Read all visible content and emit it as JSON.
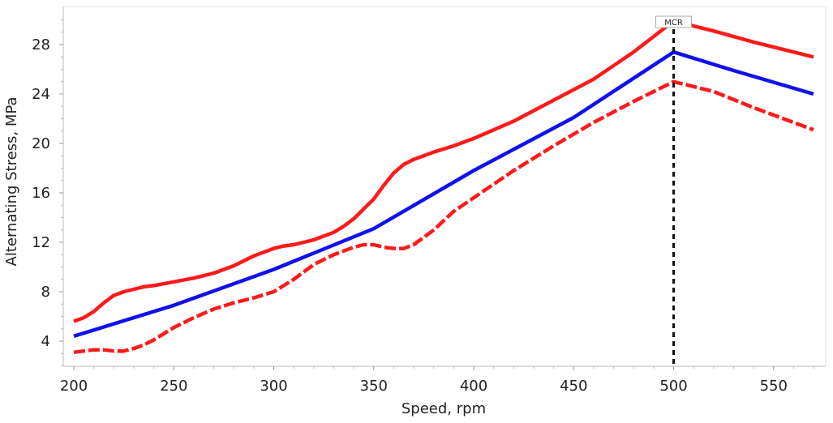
{
  "chart_data": {
    "type": "line",
    "xlabel": "Speed, rpm",
    "ylabel": "Alternating Stress, MPa",
    "xlim": [
      195,
      572
    ],
    "ylim": [
      2,
      30
    ],
    "xticks": [
      200,
      250,
      300,
      350,
      400,
      450,
      500,
      550
    ],
    "yticks": [
      4,
      8,
      12,
      16,
      20,
      24,
      28
    ],
    "grid": false,
    "annotations": [
      {
        "text": "MCR",
        "x": 500
      }
    ],
    "colors": {
      "upper": "#ff1a1a",
      "mean": "#1010ee",
      "lower": "#ff1a1a",
      "marker": "#000000"
    },
    "series": [
      {
        "style": "solid",
        "color": "#ff1a1a",
        "x": [
          200,
          205,
          210,
          215,
          220,
          225,
          230,
          235,
          240,
          250,
          260,
          270,
          280,
          290,
          300,
          305,
          310,
          320,
          330,
          335,
          340,
          345,
          350,
          355,
          360,
          365,
          370,
          375,
          380,
          390,
          400,
          420,
          440,
          460,
          480,
          500,
          520,
          540,
          570
        ],
        "y": [
          5.6,
          5.9,
          6.4,
          7.1,
          7.7,
          8.0,
          8.2,
          8.4,
          8.5,
          8.8,
          9.1,
          9.5,
          10.1,
          10.9,
          11.5,
          11.7,
          11.8,
          12.2,
          12.8,
          13.3,
          13.9,
          14.7,
          15.5,
          16.6,
          17.6,
          18.3,
          18.7,
          19.0,
          19.3,
          19.8,
          20.4,
          21.8,
          23.5,
          25.2,
          27.4,
          29.9,
          29.1,
          28.2,
          27.0
        ]
      },
      {
        "style": "solid",
        "color": "#1010ee",
        "x": [
          200,
          250,
          300,
          350,
          400,
          450,
          500,
          530,
          570
        ],
        "y": [
          4.4,
          6.9,
          9.8,
          13.1,
          17.8,
          22.1,
          27.4,
          25.9,
          24.0
        ]
      },
      {
        "style": "dashed",
        "color": "#ff1a1a",
        "x": [
          200,
          205,
          210,
          215,
          220,
          225,
          230,
          235,
          240,
          250,
          260,
          270,
          280,
          290,
          300,
          310,
          320,
          330,
          340,
          345,
          350,
          355,
          360,
          365,
          370,
          375,
          380,
          390,
          400,
          420,
          440,
          460,
          480,
          500,
          520,
          540,
          570
        ],
        "y": [
          3.1,
          3.2,
          3.3,
          3.3,
          3.2,
          3.2,
          3.4,
          3.7,
          4.1,
          5.1,
          5.9,
          6.6,
          7.1,
          7.5,
          8.0,
          9.0,
          10.2,
          11.0,
          11.6,
          11.8,
          11.8,
          11.6,
          11.5,
          11.5,
          11.8,
          12.4,
          13.0,
          14.5,
          15.6,
          17.8,
          19.8,
          21.7,
          23.4,
          25.0,
          24.2,
          22.9,
          21.1
        ]
      }
    ]
  }
}
